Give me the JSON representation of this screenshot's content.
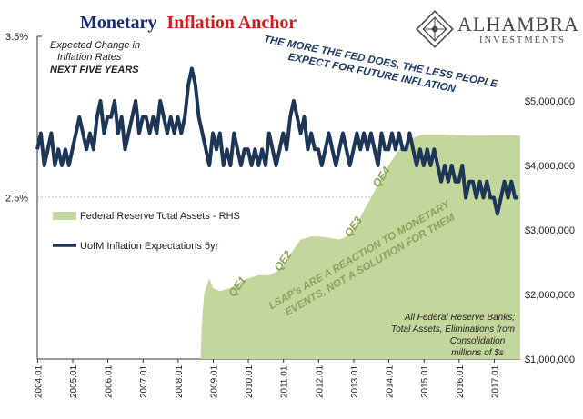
{
  "header": {
    "title_part1": "Monetary",
    "title_part2": "Inflation Anchor"
  },
  "brand": {
    "name": "ALHAMBRA",
    "sub": "INVESTMENTS",
    "logo_icon": "diamond-lattice-icon"
  },
  "notes": {
    "expected_line1": "Expected Change in",
    "expected_line2": "Inflation Rates",
    "expected_line3": "NEXT FIVE YEARS",
    "callout_top_line1": "THE MORE THE FED DOES, THE LESS PEOPLE",
    "callout_top_line2": "EXPECT FOR FUTURE INFLATION",
    "callout_mid_line1": "LSAP's ARE A REACTION TO MONETARY",
    "callout_mid_line2": "EVENTS, NOT A SOLUTION FOR THEM",
    "source_line1": "All Federal Reserve Banks;",
    "source_line2": "Total Assets, Eliminations from",
    "source_line3": "Consolidation",
    "source_line4": "millions of $s"
  },
  "colors": {
    "expectations_line": "#1d3557",
    "assets_area": "#c3d69b",
    "qe_label": "#8aa35a",
    "title_blue": "#1a2a7a",
    "title_red": "#d41a1a"
  },
  "chart_data": {
    "type": "line",
    "y_left": {
      "ticks": [
        "3.5%",
        "2.5%"
      ],
      "values": [
        3.5,
        2.5
      ],
      "range": [
        1.5,
        3.5
      ]
    },
    "y_right": {
      "ticks": [
        "$5,000,000",
        "$4,000,000",
        "$3,000,000",
        "$2,000,000",
        "$1,000,000"
      ],
      "values": [
        5000000,
        4000000,
        3000000,
        2000000,
        1000000
      ],
      "range": [
        1000000,
        6000000
      ]
    },
    "x_ticks": [
      "2004.01",
      "2005.01",
      "2006.01",
      "2007.01",
      "2008.01",
      "2009.01",
      "2010.01",
      "2011.01",
      "2012.01",
      "2013.01",
      "2014.01",
      "2015.01",
      "2016.01",
      "2017.01"
    ],
    "x_range": [
      2004.0,
      2017.75
    ],
    "legend": [
      {
        "name": "Federal Reserve Total Assets - RHS",
        "line2": "",
        "type": "area"
      },
      {
        "name": "UofM Inflation Expectations 5yr",
        "type": "line"
      }
    ],
    "qe_labels": [
      {
        "label": "QE1",
        "x": 2009.6,
        "y": 1950000
      },
      {
        "label": "QE2",
        "x": 2010.9,
        "y": 2350000
      },
      {
        "label": "QE3",
        "x": 2012.9,
        "y": 2880000
      },
      {
        "label": "QE4",
        "x": 2013.7,
        "y": 3650000
      }
    ],
    "series": [
      {
        "name": "UofM Inflation Expectations 5yr",
        "axis": "left",
        "points": [
          [
            2004.0,
            2.8
          ],
          [
            2004.1,
            2.9
          ],
          [
            2004.2,
            2.7
          ],
          [
            2004.3,
            2.8
          ],
          [
            2004.4,
            2.9
          ],
          [
            2004.5,
            2.7
          ],
          [
            2004.6,
            2.8
          ],
          [
            2004.7,
            2.7
          ],
          [
            2004.8,
            2.8
          ],
          [
            2004.9,
            2.7
          ],
          [
            2005.0,
            2.8
          ],
          [
            2005.1,
            2.9
          ],
          [
            2005.2,
            3.0
          ],
          [
            2005.3,
            2.9
          ],
          [
            2005.4,
            2.8
          ],
          [
            2005.5,
            2.9
          ],
          [
            2005.6,
            2.8
          ],
          [
            2005.7,
            3.0
          ],
          [
            2005.8,
            3.1
          ],
          [
            2005.9,
            2.9
          ],
          [
            2006.0,
            3.0
          ],
          [
            2006.1,
            3.0
          ],
          [
            2006.2,
            3.1
          ],
          [
            2006.3,
            2.9
          ],
          [
            2006.4,
            3.0
          ],
          [
            2006.5,
            2.8
          ],
          [
            2006.6,
            2.9
          ],
          [
            2006.7,
            3.0
          ],
          [
            2006.8,
            3.1
          ],
          [
            2006.9,
            2.9
          ],
          [
            2007.0,
            3.0
          ],
          [
            2007.1,
            3.0
          ],
          [
            2007.2,
            2.9
          ],
          [
            2007.3,
            3.0
          ],
          [
            2007.4,
            2.9
          ],
          [
            2007.5,
            3.1
          ],
          [
            2007.6,
            3.0
          ],
          [
            2007.7,
            2.9
          ],
          [
            2007.8,
            3.0
          ],
          [
            2007.9,
            2.9
          ],
          [
            2008.0,
            3.0
          ],
          [
            2008.1,
            2.9
          ],
          [
            2008.2,
            3.0
          ],
          [
            2008.3,
            3.2
          ],
          [
            2008.4,
            3.3
          ],
          [
            2008.5,
            3.2
          ],
          [
            2008.6,
            3.0
          ],
          [
            2008.7,
            2.9
          ],
          [
            2008.8,
            2.8
          ],
          [
            2008.9,
            2.7
          ],
          [
            2009.0,
            2.9
          ],
          [
            2009.1,
            2.8
          ],
          [
            2009.2,
            2.9
          ],
          [
            2009.3,
            2.7
          ],
          [
            2009.4,
            2.8
          ],
          [
            2009.5,
            2.7
          ],
          [
            2009.6,
            2.9
          ],
          [
            2009.7,
            2.8
          ],
          [
            2009.8,
            2.7
          ],
          [
            2009.9,
            2.8
          ],
          [
            2010.0,
            2.8
          ],
          [
            2010.1,
            2.7
          ],
          [
            2010.2,
            2.8
          ],
          [
            2010.3,
            2.7
          ],
          [
            2010.4,
            2.8
          ],
          [
            2010.5,
            2.7
          ],
          [
            2010.6,
            2.9
          ],
          [
            2010.7,
            2.8
          ],
          [
            2010.8,
            2.7
          ],
          [
            2010.9,
            2.8
          ],
          [
            2011.0,
            2.9
          ],
          [
            2011.1,
            2.8
          ],
          [
            2011.2,
            3.0
          ],
          [
            2011.3,
            3.1
          ],
          [
            2011.4,
            3.0
          ],
          [
            2011.5,
            2.9
          ],
          [
            2011.6,
            3.0
          ],
          [
            2011.7,
            2.8
          ],
          [
            2011.8,
            2.9
          ],
          [
            2011.9,
            2.8
          ],
          [
            2012.0,
            2.8
          ],
          [
            2012.1,
            2.7
          ],
          [
            2012.2,
            2.8
          ],
          [
            2012.3,
            2.9
          ],
          [
            2012.4,
            2.8
          ],
          [
            2012.5,
            2.7
          ],
          [
            2012.6,
            2.8
          ],
          [
            2012.7,
            2.9
          ],
          [
            2012.8,
            2.8
          ],
          [
            2012.9,
            2.7
          ],
          [
            2013.0,
            2.8
          ],
          [
            2013.1,
            2.9
          ],
          [
            2013.2,
            2.8
          ],
          [
            2013.3,
            2.9
          ],
          [
            2013.4,
            2.8
          ],
          [
            2013.5,
            2.9
          ],
          [
            2013.6,
            2.8
          ],
          [
            2013.7,
            2.7
          ],
          [
            2013.8,
            2.9
          ],
          [
            2013.9,
            2.8
          ],
          [
            2014.0,
            2.8
          ],
          [
            2014.1,
            2.9
          ],
          [
            2014.2,
            2.8
          ],
          [
            2014.3,
            2.9
          ],
          [
            2014.4,
            2.8
          ],
          [
            2014.5,
            2.8
          ],
          [
            2014.6,
            2.9
          ],
          [
            2014.7,
            2.8
          ],
          [
            2014.8,
            2.7
          ],
          [
            2014.9,
            2.8
          ],
          [
            2015.0,
            2.7
          ],
          [
            2015.1,
            2.8
          ],
          [
            2015.2,
            2.7
          ],
          [
            2015.3,
            2.8
          ],
          [
            2015.4,
            2.7
          ],
          [
            2015.5,
            2.6
          ],
          [
            2015.6,
            2.7
          ],
          [
            2015.7,
            2.6
          ],
          [
            2015.8,
            2.7
          ],
          [
            2015.9,
            2.6
          ],
          [
            2016.0,
            2.6
          ],
          [
            2016.1,
            2.7
          ],
          [
            2016.2,
            2.5
          ],
          [
            2016.3,
            2.6
          ],
          [
            2016.4,
            2.6
          ],
          [
            2016.5,
            2.5
          ],
          [
            2016.6,
            2.6
          ],
          [
            2016.7,
            2.5
          ],
          [
            2016.8,
            2.6
          ],
          [
            2016.9,
            2.5
          ],
          [
            2017.0,
            2.5
          ],
          [
            2017.1,
            2.4
          ],
          [
            2017.2,
            2.5
          ],
          [
            2017.3,
            2.6
          ],
          [
            2017.4,
            2.5
          ],
          [
            2017.5,
            2.6
          ],
          [
            2017.6,
            2.5
          ],
          [
            2017.7,
            2.5
          ]
        ]
      },
      {
        "name": "Federal Reserve Total Assets - RHS",
        "axis": "right",
        "points": [
          [
            2008.65,
            1000000
          ],
          [
            2008.68,
            1500000
          ],
          [
            2008.75,
            2000000
          ],
          [
            2008.8,
            2100000
          ],
          [
            2008.9,
            2250000
          ],
          [
            2009.0,
            2100000
          ],
          [
            2009.2,
            2050000
          ],
          [
            2009.5,
            2100000
          ],
          [
            2009.8,
            2200000
          ],
          [
            2010.0,
            2250000
          ],
          [
            2010.3,
            2300000
          ],
          [
            2010.6,
            2300000
          ],
          [
            2010.8,
            2350000
          ],
          [
            2011.0,
            2450000
          ],
          [
            2011.3,
            2700000
          ],
          [
            2011.5,
            2850000
          ],
          [
            2011.8,
            2900000
          ],
          [
            2012.0,
            2900000
          ],
          [
            2012.3,
            2880000
          ],
          [
            2012.6,
            2850000
          ],
          [
            2012.8,
            2900000
          ],
          [
            2013.0,
            3000000
          ],
          [
            2013.3,
            3300000
          ],
          [
            2013.6,
            3600000
          ],
          [
            2013.8,
            3800000
          ],
          [
            2014.0,
            4000000
          ],
          [
            2014.3,
            4250000
          ],
          [
            2014.6,
            4400000
          ],
          [
            2014.8,
            4450000
          ],
          [
            2015.0,
            4480000
          ],
          [
            2015.5,
            4480000
          ],
          [
            2016.0,
            4470000
          ],
          [
            2016.5,
            4460000
          ],
          [
            2017.0,
            4470000
          ],
          [
            2017.5,
            4470000
          ],
          [
            2017.75,
            4460000
          ]
        ]
      }
    ]
  }
}
